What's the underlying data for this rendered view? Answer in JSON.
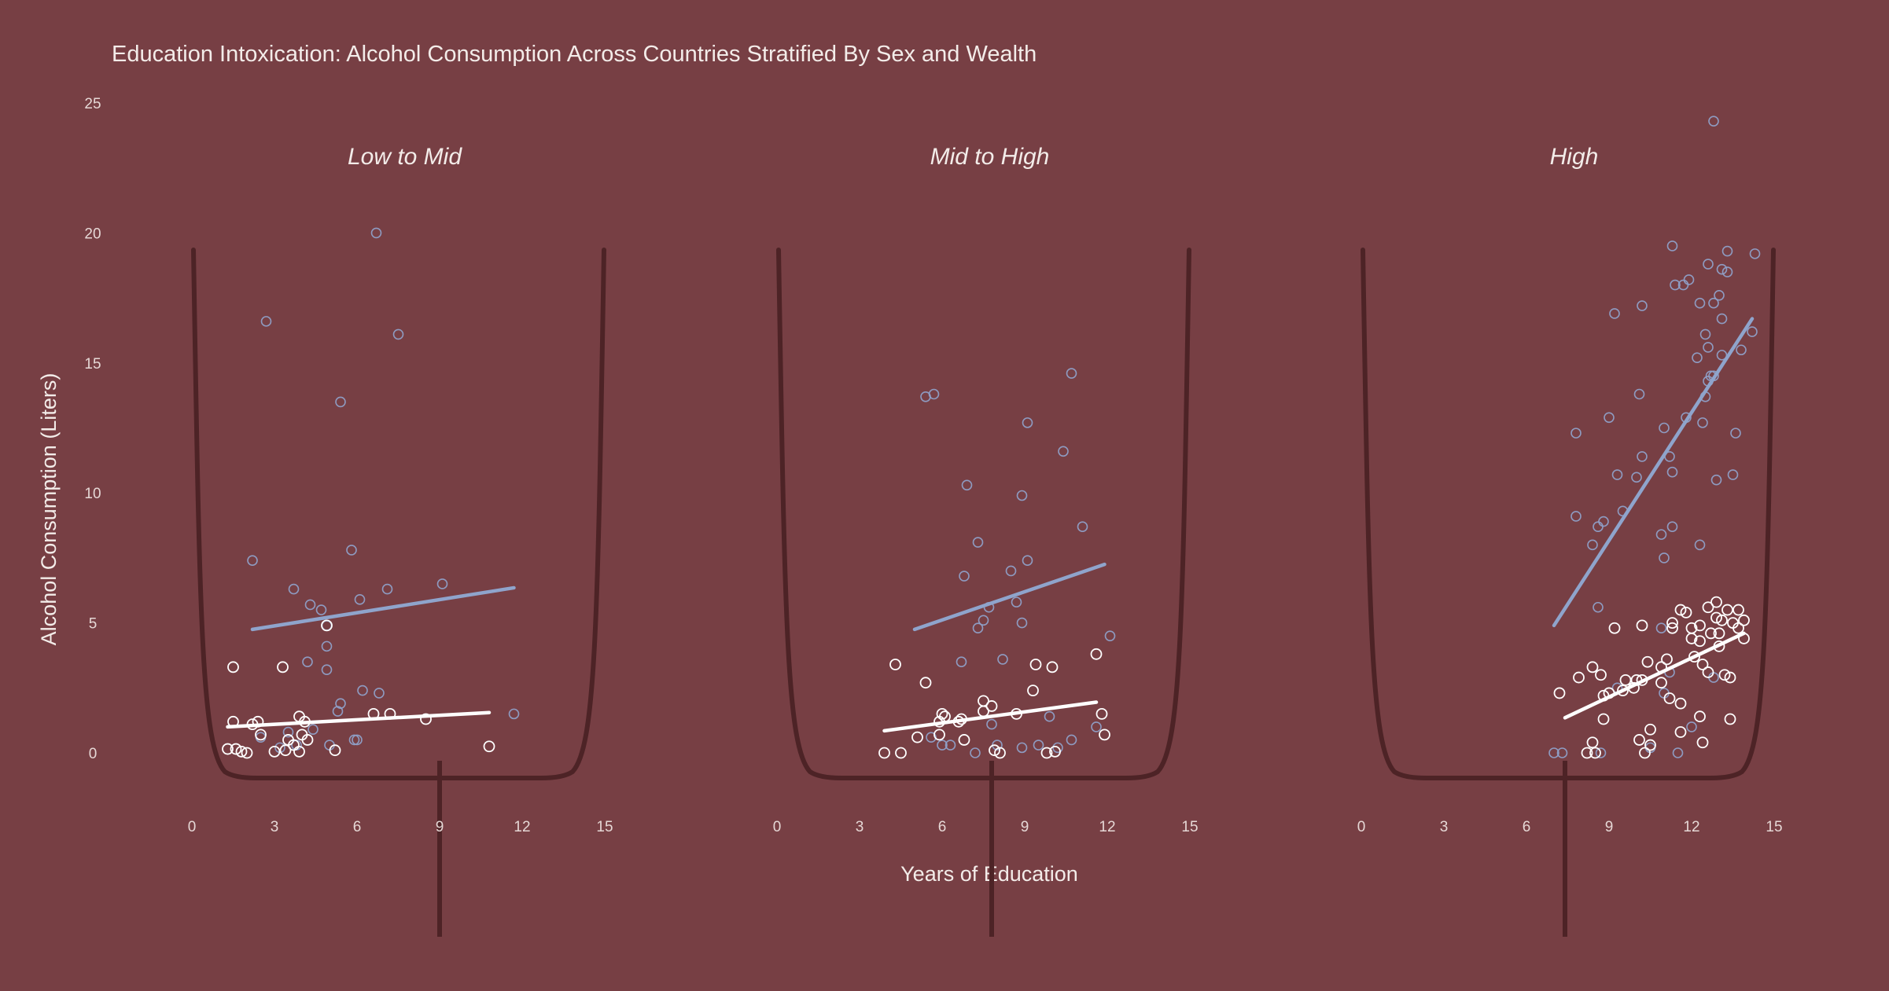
{
  "chart_data": {
    "type": "scatter",
    "title": "Education Intoxication: Alcohol Consumption Across Countries Stratified By Sex and Wealth",
    "xlabel": "Years of Education",
    "ylabel": "Alcohol Consumption (Liters)",
    "xlim": [
      0,
      15
    ],
    "ylim": [
      0,
      25
    ],
    "x_ticks": [
      "0",
      "3",
      "6",
      "9",
      "12",
      "15"
    ],
    "y_ticks": [
      "0",
      "5",
      "10",
      "15",
      "20",
      "25"
    ],
    "grid": false,
    "legend": "none",
    "colors": {
      "background": "#773f44",
      "series_blue": "#8fa0c8",
      "series_blue_line": "#8fa4cc",
      "series_white": "#ffffff",
      "glass": "#4d2326"
    },
    "panels": [
      {
        "facet": "Low to Mid",
        "series": [
          {
            "color": "#8fa0c8",
            "points": [
              [
                2.2,
                7.4
              ],
              [
                2.7,
                16.6
              ],
              [
                3.7,
                6.3
              ],
              [
                4.3,
                5.7
              ],
              [
                4.7,
                5.5
              ],
              [
                4.9,
                4.9
              ],
              [
                4.9,
                4.1
              ],
              [
                4.9,
                3.2
              ],
              [
                4.2,
                3.5
              ],
              [
                5.4,
                13.5
              ],
              [
                5.8,
                7.8
              ],
              [
                6.1,
                5.9
              ],
              [
                6.7,
                20.0
              ],
              [
                7.1,
                6.3
              ],
              [
                7.5,
                16.1
              ],
              [
                9.1,
                6.5
              ],
              [
                11.7,
                1.5
              ],
              [
                5.4,
                1.9
              ],
              [
                6.2,
                2.4
              ],
              [
                6.8,
                2.3
              ],
              [
                5.3,
                1.6
              ],
              [
                3.5,
                0.8
              ],
              [
                4.4,
                0.9
              ],
              [
                5.0,
                0.3
              ],
              [
                5.9,
                0.5
              ],
              [
                6.0,
                0.5
              ],
              [
                3.2,
                0.2
              ],
              [
                2.5,
                0.6
              ],
              [
                3.8,
                0.3
              ]
            ],
            "trend": [
              [
                2.2,
                4.75
              ],
              [
                11.7,
                6.35
              ]
            ]
          },
          {
            "color": "#ffffff",
            "points": [
              [
                1.5,
                3.3
              ],
              [
                1.5,
                1.2
              ],
              [
                2.2,
                1.1
              ],
              [
                2.4,
                1.2
              ],
              [
                2.5,
                0.7
              ],
              [
                1.3,
                0.15
              ],
              [
                1.6,
                0.15
              ],
              [
                1.8,
                0.05
              ],
              [
                2.0,
                0.0
              ],
              [
                3.0,
                0.05
              ],
              [
                3.4,
                0.1
              ],
              [
                3.5,
                0.5
              ],
              [
                3.7,
                0.3
              ],
              [
                3.9,
                0.05
              ],
              [
                3.3,
                3.3
              ],
              [
                3.9,
                1.4
              ],
              [
                4.1,
                1.2
              ],
              [
                4.0,
                0.7
              ],
              [
                4.2,
                0.5
              ],
              [
                5.2,
                0.1
              ],
              [
                4.9,
                4.9
              ],
              [
                6.6,
                1.5
              ],
              [
                7.2,
                1.5
              ],
              [
                8.5,
                1.3
              ],
              [
                10.8,
                0.25
              ]
            ],
            "trend": [
              [
                1.3,
                1.0
              ],
              [
                10.8,
                1.55
              ]
            ]
          }
        ]
      },
      {
        "facet": "Mid to High",
        "series": [
          {
            "color": "#8fa0c8",
            "points": [
              [
                5.4,
                13.7
              ],
              [
                5.7,
                13.8
              ],
              [
                6.7,
                3.5
              ],
              [
                6.9,
                10.3
              ],
              [
                7.3,
                8.1
              ],
              [
                6.8,
                6.8
              ],
              [
                7.5,
                5.1
              ],
              [
                7.7,
                5.6
              ],
              [
                8.2,
                3.6
              ],
              [
                8.5,
                7.0
              ],
              [
                8.9,
                9.9
              ],
              [
                8.9,
                5.0
              ],
              [
                9.1,
                12.7
              ],
              [
                9.1,
                7.4
              ],
              [
                10.4,
                11.6
              ],
              [
                10.7,
                14.6
              ],
              [
                11.1,
                8.7
              ],
              [
                12.1,
                4.5
              ],
              [
                8.7,
                5.8
              ],
              [
                7.3,
                4.8
              ],
              [
                6.0,
                0.3
              ],
              [
                6.3,
                0.3
              ],
              [
                8.0,
                0.3
              ],
              [
                8.9,
                0.2
              ],
              [
                9.5,
                0.3
              ],
              [
                10.2,
                0.2
              ],
              [
                10.7,
                0.5
              ],
              [
                5.6,
                0.6
              ],
              [
                7.2,
                0.0
              ],
              [
                11.6,
                1.0
              ],
              [
                9.9,
                1.4
              ],
              [
                7.8,
                1.1
              ]
            ],
            "trend": [
              [
                5.0,
                4.75
              ],
              [
                11.9,
                7.25
              ]
            ]
          },
          {
            "color": "#ffffff",
            "points": [
              [
                3.9,
                0.0
              ],
              [
                4.5,
                0.0
              ],
              [
                5.1,
                0.6
              ],
              [
                4.3,
                3.4
              ],
              [
                5.4,
                2.7
              ],
              [
                5.9,
                0.7
              ],
              [
                5.9,
                1.2
              ],
              [
                6.0,
                1.5
              ],
              [
                6.1,
                1.4
              ],
              [
                6.6,
                1.2
              ],
              [
                6.7,
                1.3
              ],
              [
                6.8,
                0.5
              ],
              [
                7.5,
                2.0
              ],
              [
                7.5,
                1.6
              ],
              [
                7.8,
                1.8
              ],
              [
                7.9,
                0.1
              ],
              [
                8.1,
                0.0
              ],
              [
                8.7,
                1.5
              ],
              [
                9.3,
                2.4
              ],
              [
                9.4,
                3.4
              ],
              [
                10.0,
                3.3
              ],
              [
                9.8,
                0.0
              ],
              [
                10.1,
                0.05
              ],
              [
                11.6,
                3.8
              ],
              [
                11.8,
                1.5
              ],
              [
                11.9,
                0.7
              ]
            ],
            "trend": [
              [
                3.9,
                0.85
              ],
              [
                11.6,
                1.95
              ]
            ]
          }
        ]
      },
      {
        "facet": "High",
        "series": [
          {
            "color": "#8fa0c8",
            "points": [
              [
                12.8,
                24.3
              ],
              [
                11.3,
                19.5
              ],
              [
                13.3,
                19.3
              ],
              [
                14.3,
                19.2
              ],
              [
                12.6,
                18.8
              ],
              [
                13.1,
                18.6
              ],
              [
                13.3,
                18.5
              ],
              [
                11.9,
                18.2
              ],
              [
                11.4,
                18.0
              ],
              [
                11.7,
                18.0
              ],
              [
                13.0,
                17.6
              ],
              [
                12.3,
                17.3
              ],
              [
                12.8,
                17.3
              ],
              [
                10.2,
                17.2
              ],
              [
                9.2,
                16.9
              ],
              [
                13.1,
                16.7
              ],
              [
                12.5,
                16.1
              ],
              [
                14.2,
                16.2
              ],
              [
                12.2,
                15.2
              ],
              [
                12.6,
                15.6
              ],
              [
                13.1,
                15.3
              ],
              [
                13.8,
                15.5
              ],
              [
                12.8,
                14.5
              ],
              [
                12.7,
                14.5
              ],
              [
                12.6,
                14.3
              ],
              [
                12.5,
                13.7
              ],
              [
                10.1,
                13.8
              ],
              [
                12.4,
                12.7
              ],
              [
                11.8,
                12.9
              ],
              [
                9.0,
                12.9
              ],
              [
                11.0,
                12.5
              ],
              [
                7.8,
                12.3
              ],
              [
                13.6,
                12.3
              ],
              [
                11.2,
                11.4
              ],
              [
                10.2,
                11.4
              ],
              [
                11.3,
                10.8
              ],
              [
                9.3,
                10.7
              ],
              [
                10.0,
                10.6
              ],
              [
                12.9,
                10.5
              ],
              [
                13.5,
                10.7
              ],
              [
                7.8,
                9.1
              ],
              [
                9.5,
                9.3
              ],
              [
                8.8,
                8.9
              ],
              [
                8.6,
                8.7
              ],
              [
                11.3,
                8.7
              ],
              [
                10.9,
                8.4
              ],
              [
                8.4,
                8.0
              ],
              [
                12.3,
                8.0
              ],
              [
                11.0,
                7.5
              ],
              [
                8.6,
                5.6
              ],
              [
                10.9,
                4.8
              ],
              [
                11.2,
                3.1
              ],
              [
                11.0,
                2.3
              ],
              [
                12.8,
                2.9
              ],
              [
                9.3,
                2.5
              ],
              [
                8.7,
                0.0
              ],
              [
                7.0,
                0.0
              ],
              [
                7.3,
                0.0
              ],
              [
                11.5,
                0.0
              ],
              [
                12.0,
                1.0
              ],
              [
                10.5,
                0.2
              ]
            ],
            "trend": [
              [
                7.0,
                4.9
              ],
              [
                14.2,
                16.7
              ]
            ]
          },
          {
            "color": "#ffffff",
            "points": [
              [
                12.9,
                5.8
              ],
              [
                12.6,
                5.6
              ],
              [
                11.6,
                5.5
              ],
              [
                11.8,
                5.4
              ],
              [
                13.3,
                5.5
              ],
              [
                13.7,
                5.5
              ],
              [
                12.9,
                5.2
              ],
              [
                13.1,
                5.1
              ],
              [
                13.5,
                5.0
              ],
              [
                13.9,
                5.1
              ],
              [
                11.3,
                5.0
              ],
              [
                11.3,
                4.8
              ],
              [
                10.2,
                4.9
              ],
              [
                9.2,
                4.8
              ],
              [
                12.0,
                4.8
              ],
              [
                12.3,
                4.9
              ],
              [
                12.7,
                4.6
              ],
              [
                13.0,
                4.6
              ],
              [
                13.7,
                4.8
              ],
              [
                12.3,
                4.3
              ],
              [
                12.0,
                4.4
              ],
              [
                13.0,
                4.1
              ],
              [
                13.9,
                4.4
              ],
              [
                12.1,
                3.7
              ],
              [
                11.1,
                3.6
              ],
              [
                10.4,
                3.5
              ],
              [
                12.4,
                3.4
              ],
              [
                10.9,
                3.3
              ],
              [
                12.6,
                3.1
              ],
              [
                13.2,
                3.0
              ],
              [
                13.4,
                2.9
              ],
              [
                8.4,
                3.3
              ],
              [
                8.7,
                3.0
              ],
              [
                7.9,
                2.9
              ],
              [
                9.6,
                2.8
              ],
              [
                10.0,
                2.8
              ],
              [
                10.2,
                2.8
              ],
              [
                10.9,
                2.7
              ],
              [
                9.9,
                2.5
              ],
              [
                9.5,
                2.4
              ],
              [
                9.0,
                2.3
              ],
              [
                8.8,
                2.2
              ],
              [
                7.2,
                2.3
              ],
              [
                11.2,
                2.1
              ],
              [
                11.6,
                1.9
              ],
              [
                8.8,
                1.3
              ],
              [
                12.3,
                1.4
              ],
              [
                13.4,
                1.3
              ],
              [
                10.5,
                0.9
              ],
              [
                11.6,
                0.8
              ],
              [
                10.1,
                0.5
              ],
              [
                10.5,
                0.3
              ],
              [
                12.4,
                0.4
              ],
              [
                8.4,
                0.4
              ],
              [
                8.2,
                0.0
              ],
              [
                8.5,
                0.0
              ],
              [
                10.3,
                0.0
              ]
            ],
            "trend": [
              [
                7.4,
                1.35
              ],
              [
                13.9,
                4.6
              ]
            ]
          }
        ]
      }
    ]
  }
}
